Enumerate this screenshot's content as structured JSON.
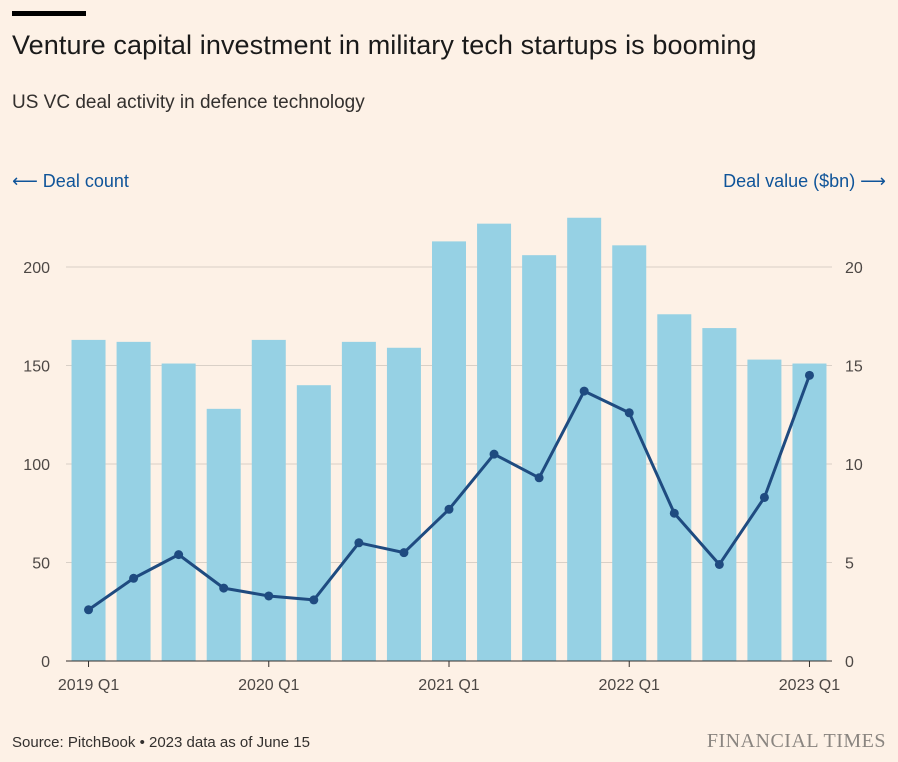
{
  "header": {
    "title": "Venture capital investment in military tech startups is booming",
    "subtitle": "US VC deal activity in defence technology"
  },
  "axes": {
    "left_title": "⟵ Deal count",
    "right_title": "Deal value ($bn) ⟶"
  },
  "footer": {
    "source": "Source: PitchBook • 2023 data as of June 15",
    "brand": "FINANCIAL TIMES"
  },
  "colors": {
    "bar": "#96d1e4",
    "line": "#1f4b80",
    "grid": "#d9d0c7",
    "background": "#fdf1e6"
  },
  "chart_data": {
    "type": "bar",
    "quarters": [
      "2019 Q1",
      "2019 Q2",
      "2019 Q3",
      "2019 Q4",
      "2020 Q1",
      "2020 Q2",
      "2020 Q3",
      "2020 Q4",
      "2021 Q1",
      "2021 Q2",
      "2021 Q3",
      "2021 Q4",
      "2022 Q1",
      "2022 Q2",
      "2022 Q3",
      "2022 Q4",
      "2023 Q1"
    ],
    "x_tick_labels": [
      "2019 Q1",
      "2020 Q1",
      "2021 Q1",
      "2022 Q1",
      "2023 Q1"
    ],
    "x_tick_indices": [
      0,
      4,
      8,
      12,
      16
    ],
    "series": [
      {
        "name": "Deal count",
        "axis": "left",
        "kind": "bar",
        "values": [
          163,
          162,
          151,
          128,
          163,
          140,
          162,
          159,
          213,
          222,
          206,
          225,
          211,
          176,
          169,
          153,
          151
        ]
      },
      {
        "name": "Deal value ($bn)",
        "axis": "right",
        "kind": "line",
        "values": [
          2.6,
          4.2,
          5.4,
          3.7,
          3.3,
          3.1,
          6.0,
          5.5,
          7.7,
          10.5,
          9.3,
          13.7,
          12.6,
          7.5,
          4.9,
          8.3,
          14.5
        ]
      }
    ],
    "y_left": {
      "min": 0,
      "max": 200,
      "ticks": [
        0,
        50,
        100,
        150,
        200
      ]
    },
    "y_right": {
      "min": 0,
      "max": 20,
      "ticks": [
        0,
        5,
        10,
        15,
        20
      ]
    },
    "grid": true
  }
}
